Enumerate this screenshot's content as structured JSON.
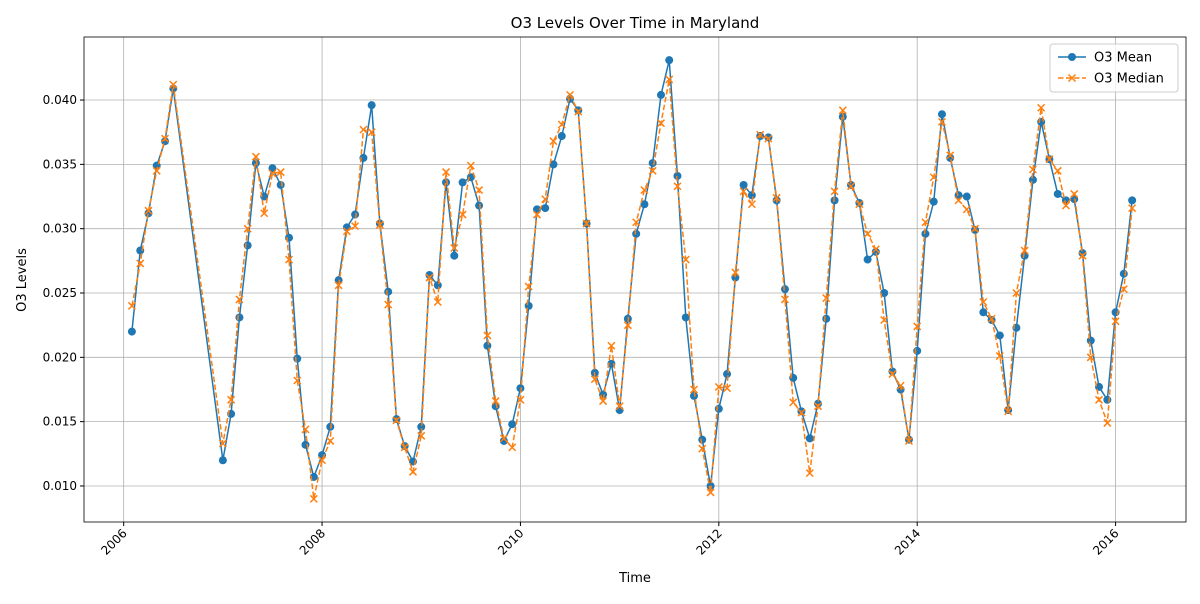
{
  "chart_data": {
    "type": "line",
    "title": "O3 Levels Over Time in Maryland",
    "xlabel": "Time",
    "ylabel": "O3 Levels",
    "x": [
      2006.083,
      2006.167,
      2006.25,
      2006.333,
      2006.417,
      2006.5,
      2007.0,
      2007.083,
      2007.167,
      2007.25,
      2007.333,
      2007.417,
      2007.5,
      2007.583,
      2007.667,
      2007.75,
      2007.833,
      2007.917,
      2008.0,
      2008.083,
      2008.167,
      2008.25,
      2008.333,
      2008.417,
      2008.5,
      2008.583,
      2008.667,
      2008.75,
      2008.833,
      2008.917,
      2009.0,
      2009.083,
      2009.167,
      2009.25,
      2009.333,
      2009.417,
      2009.5,
      2009.583,
      2009.667,
      2009.75,
      2009.833,
      2009.917,
      2010.0,
      2010.083,
      2010.167,
      2010.25,
      2010.333,
      2010.417,
      2010.5,
      2010.583,
      2010.667,
      2010.75,
      2010.833,
      2010.917,
      2011.0,
      2011.083,
      2011.167,
      2011.25,
      2011.333,
      2011.417,
      2011.5,
      2011.583,
      2011.667,
      2011.75,
      2011.833,
      2011.917,
      2012.0,
      2012.083,
      2012.167,
      2012.25,
      2012.333,
      2012.417,
      2012.5,
      2012.583,
      2012.667,
      2012.75,
      2012.833,
      2012.917,
      2013.0,
      2013.083,
      2013.167,
      2013.25,
      2013.333,
      2013.417,
      2013.5,
      2013.583,
      2013.667,
      2013.75,
      2013.833,
      2013.917,
      2014.0,
      2014.083,
      2014.167,
      2014.25,
      2014.333,
      2014.417,
      2014.5,
      2014.583,
      2014.667,
      2014.75,
      2014.833,
      2014.917,
      2015.0,
      2015.083,
      2015.167,
      2015.25,
      2015.333,
      2015.417,
      2015.5,
      2015.583,
      2015.667,
      2015.75,
      2015.833,
      2015.917,
      2016.0,
      2016.083,
      2016.167
    ],
    "series": [
      {
        "name": "O3 Mean",
        "color": "#1f77b4",
        "marker": "o",
        "dash": false,
        "values": [
          0.022,
          0.0283,
          0.0312,
          0.0349,
          0.0368,
          0.0409,
          0.012,
          0.0156,
          0.0231,
          0.0287,
          0.0351,
          0.0325,
          0.0347,
          0.0334,
          0.0293,
          0.0199,
          0.0132,
          0.0107,
          0.0124,
          0.0146,
          0.026,
          0.0301,
          0.0311,
          0.0355,
          0.0396,
          0.0304,
          0.0251,
          0.0152,
          0.0131,
          0.0119,
          0.0146,
          0.0264,
          0.0256,
          0.0336,
          0.0279,
          0.0336,
          0.034,
          0.0318,
          0.0209,
          0.0162,
          0.0135,
          0.0148,
          0.0176,
          0.024,
          0.0315,
          0.0316,
          0.035,
          0.0372,
          0.0401,
          0.0392,
          0.0304,
          0.0188,
          0.0171,
          0.0195,
          0.0159,
          0.023,
          0.0296,
          0.0319,
          0.0351,
          0.0404,
          0.0431,
          0.0341,
          0.0231,
          0.017,
          0.0136,
          0.01,
          0.016,
          0.0187,
          0.0262,
          0.0334,
          0.0326,
          0.0372,
          0.0371,
          0.0322,
          0.0253,
          0.0184,
          0.0158,
          0.0137,
          0.0164,
          0.023,
          0.0322,
          0.0387,
          0.0334,
          0.032,
          0.0276,
          0.0282,
          0.025,
          0.0189,
          0.0175,
          0.0136,
          0.0205,
          0.0296,
          0.0321,
          0.0389,
          0.0355,
          0.0326,
          0.0325,
          0.0299,
          0.0235,
          0.0229,
          0.0217,
          0.0159,
          0.0223,
          0.0279,
          0.0338,
          0.0383,
          0.0354,
          0.0327,
          0.0322,
          0.0323,
          0.0281,
          0.0213,
          0.0177,
          0.0167,
          0.0235,
          0.0265,
          0.0322
        ]
      },
      {
        "name": "O3 Median",
        "color": "#ff7f0e",
        "marker": "x",
        "dash": true,
        "values": [
          0.024,
          0.0273,
          0.0314,
          0.0345,
          0.037,
          0.0412,
          0.0133,
          0.0167,
          0.0245,
          0.03,
          0.0356,
          0.0312,
          0.0343,
          0.0344,
          0.0276,
          0.0182,
          0.0144,
          0.009,
          0.012,
          0.0135,
          0.0256,
          0.0298,
          0.0302,
          0.0377,
          0.0375,
          0.0303,
          0.0241,
          0.0151,
          0.013,
          0.0111,
          0.0139,
          0.0262,
          0.0243,
          0.0344,
          0.0285,
          0.0311,
          0.0349,
          0.033,
          0.0217,
          0.0166,
          0.0137,
          0.013,
          0.0167,
          0.0255,
          0.0311,
          0.0323,
          0.0368,
          0.0381,
          0.0404,
          0.0391,
          0.0304,
          0.0183,
          0.0166,
          0.0209,
          0.0162,
          0.0225,
          0.0305,
          0.033,
          0.0345,
          0.0382,
          0.0416,
          0.0333,
          0.0276,
          0.0175,
          0.0129,
          0.0095,
          0.0177,
          0.0176,
          0.0266,
          0.0329,
          0.0319,
          0.0373,
          0.037,
          0.0324,
          0.0245,
          0.0165,
          0.0157,
          0.011,
          0.0162,
          0.0246,
          0.0329,
          0.0392,
          0.0333,
          0.0319,
          0.0296,
          0.0284,
          0.0229,
          0.0187,
          0.0178,
          0.0135,
          0.0224,
          0.0305,
          0.034,
          0.0383,
          0.0357,
          0.0322,
          0.0315,
          0.03,
          0.0243,
          0.023,
          0.0201,
          0.0158,
          0.025,
          0.0283,
          0.0346,
          0.0394,
          0.0354,
          0.0345,
          0.0318,
          0.0327,
          0.0279,
          0.02,
          0.0167,
          0.0149,
          0.0228,
          0.0253,
          0.0316
        ]
      }
    ],
    "xlim": [
      2005.6,
      2016.71
    ],
    "xticks": [
      2006,
      2008,
      2010,
      2012,
      2014,
      2016
    ],
    "ylim": [
      0.0072,
      0.0449
    ],
    "yticks": [
      {
        "value": 0.01,
        "label": "0.010"
      },
      {
        "value": 0.015,
        "label": "0.015"
      },
      {
        "value": 0.02,
        "label": "0.020"
      },
      {
        "value": 0.025,
        "label": "0.025"
      },
      {
        "value": 0.03,
        "label": "0.030"
      },
      {
        "value": 0.035,
        "label": "0.035"
      },
      {
        "value": 0.04,
        "label": "0.040"
      }
    ],
    "grid": true,
    "legend": "upper right"
  }
}
